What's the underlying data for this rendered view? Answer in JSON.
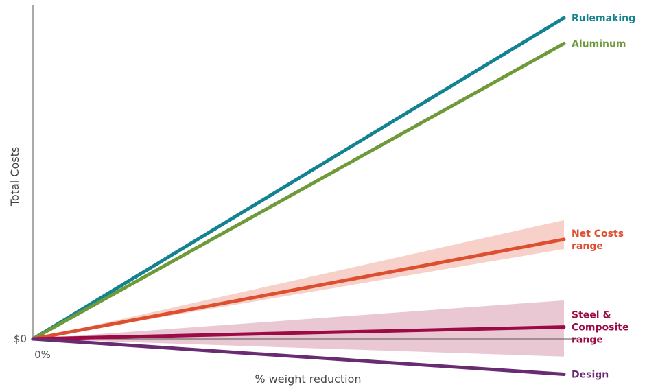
{
  "chart_data": {
    "type": "line",
    "title": "",
    "xlabel": "% weight reduction",
    "ylabel": "Total Costs",
    "x_tick_labels": [
      "0%"
    ],
    "y_tick_labels": [
      "$0"
    ],
    "x": [
      0,
      1
    ],
    "grid": false,
    "legend": "direct labels at right end of each line",
    "series": [
      {
        "name": "Rulemaking",
        "label_lines": [
          "Rulemaking"
        ],
        "color": "#138291",
        "values": [
          0,
          1.0
        ]
      },
      {
        "name": "Aluminum",
        "label_lines": [
          "Aluminum"
        ],
        "color": "#6f9a3a",
        "values": [
          0,
          0.92
        ]
      },
      {
        "name": "Net Costs range",
        "label_lines": [
          "Net Costs",
          "range"
        ],
        "color": "#dd4f2f",
        "values": [
          0,
          0.31
        ],
        "band": {
          "low": [
            0,
            0.28
          ],
          "high": [
            0,
            0.37
          ],
          "color": "#f3b8ac"
        }
      },
      {
        "name": "Steel & Composite range",
        "label_lines": [
          "Steel &",
          "Composite",
          "range"
        ],
        "color": "#9c0b45",
        "values": [
          0,
          0.037
        ],
        "band": {
          "low": [
            0,
            -0.055
          ],
          "high": [
            0,
            0.12
          ],
          "color": "#ddaabb"
        }
      },
      {
        "name": "Design",
        "label_lines": [
          "Design"
        ],
        "color": "#692c73",
        "values": [
          0,
          -0.11
        ]
      }
    ]
  }
}
